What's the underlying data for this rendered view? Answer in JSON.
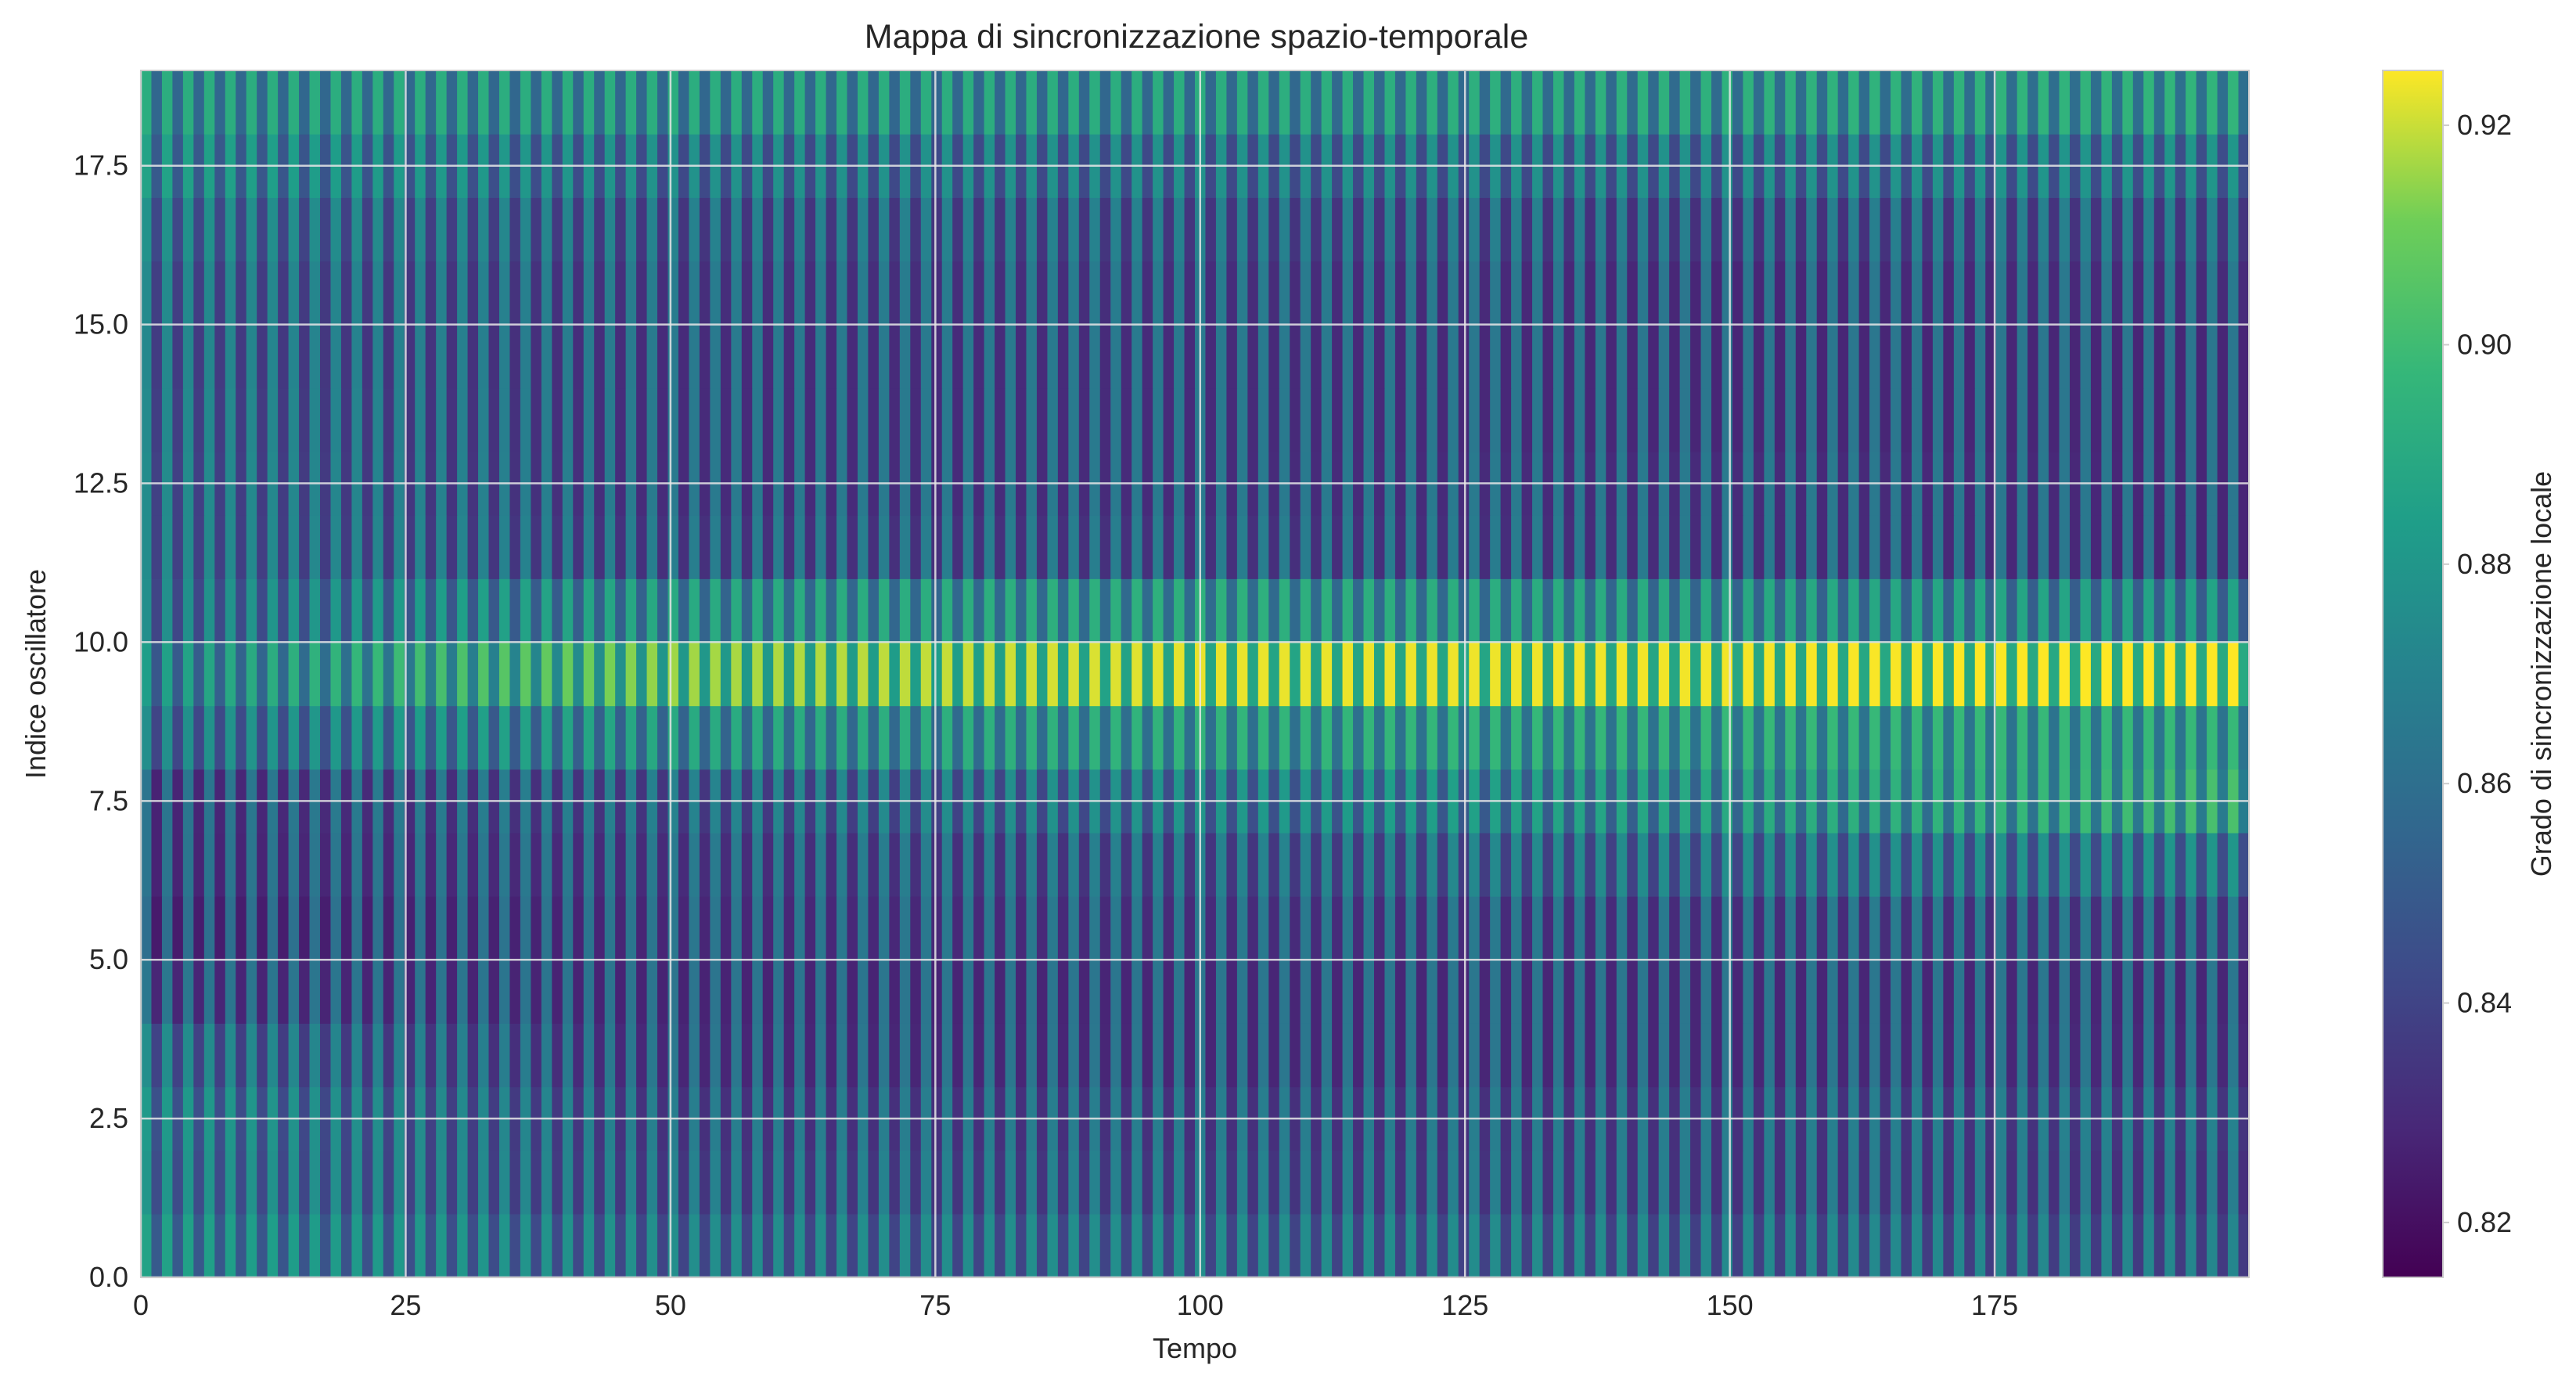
{
  "chart_data": {
    "type": "heatmap",
    "title": "Mappa di sincronizzazione spazio-temporale",
    "xlabel": "Tempo",
    "ylabel": "Indice oscillatore",
    "xlim": [
      0,
      199
    ],
    "ylim": [
      0,
      19
    ],
    "x_ticks": [
      0,
      25,
      50,
      75,
      100,
      125,
      150,
      175
    ],
    "x_tick_labels": [
      "0",
      "25",
      "50",
      "75",
      "100",
      "125",
      "150",
      "175"
    ],
    "y_ticks": [
      0,
      2.5,
      5,
      7.5,
      10,
      12.5,
      15,
      17.5
    ],
    "y_tick_labels": [
      "0.0",
      "2.5",
      "5.0",
      "7.5",
      "10.0",
      "12.5",
      "15.0",
      "17.5"
    ],
    "grid": true,
    "colormap": "viridis",
    "colorbar": {
      "label": "Grado di sincronizzazione locale",
      "vmin": 0.815,
      "vmax": 0.925,
      "ticks": [
        0.82,
        0.84,
        0.86,
        0.88,
        0.9,
        0.92
      ],
      "tick_labels": [
        "0.82",
        "0.84",
        "0.86",
        "0.88",
        "0.90",
        "0.92"
      ]
    },
    "oscillation_period": 2,
    "time_samples": 200,
    "oscillators": 19,
    "row_baseline_by_phase": [
      {
        "t": 0,
        "rows": [
          0.868,
          0.862,
          0.864,
          0.858,
          0.846,
          0.842,
          0.845,
          0.845,
          0.858,
          0.866,
          0.858,
          0.857,
          0.857,
          0.856,
          0.855,
          0.856,
          0.86,
          0.868,
          0.874
        ]
      },
      {
        "t": 50,
        "rows": [
          0.858,
          0.852,
          0.85,
          0.846,
          0.845,
          0.846,
          0.848,
          0.852,
          0.872,
          0.898,
          0.872,
          0.85,
          0.848,
          0.848,
          0.848,
          0.849,
          0.852,
          0.86,
          0.874
        ]
      },
      {
        "t": 100,
        "rows": [
          0.858,
          0.852,
          0.85,
          0.846,
          0.846,
          0.848,
          0.852,
          0.862,
          0.878,
          0.905,
          0.876,
          0.85,
          0.848,
          0.848,
          0.848,
          0.849,
          0.852,
          0.86,
          0.874
        ]
      },
      {
        "t": 150,
        "rows": [
          0.856,
          0.85,
          0.85,
          0.846,
          0.846,
          0.848,
          0.858,
          0.872,
          0.88,
          0.906,
          0.872,
          0.848,
          0.848,
          0.846,
          0.846,
          0.846,
          0.85,
          0.86,
          0.876
        ]
      },
      {
        "t": 199,
        "rows": [
          0.854,
          0.85,
          0.852,
          0.847,
          0.846,
          0.85,
          0.862,
          0.885,
          0.88,
          0.908,
          0.868,
          0.846,
          0.846,
          0.846,
          0.846,
          0.848,
          0.852,
          0.862,
          0.878
        ]
      }
    ],
    "oscillation_amplitude": 0.018
  }
}
